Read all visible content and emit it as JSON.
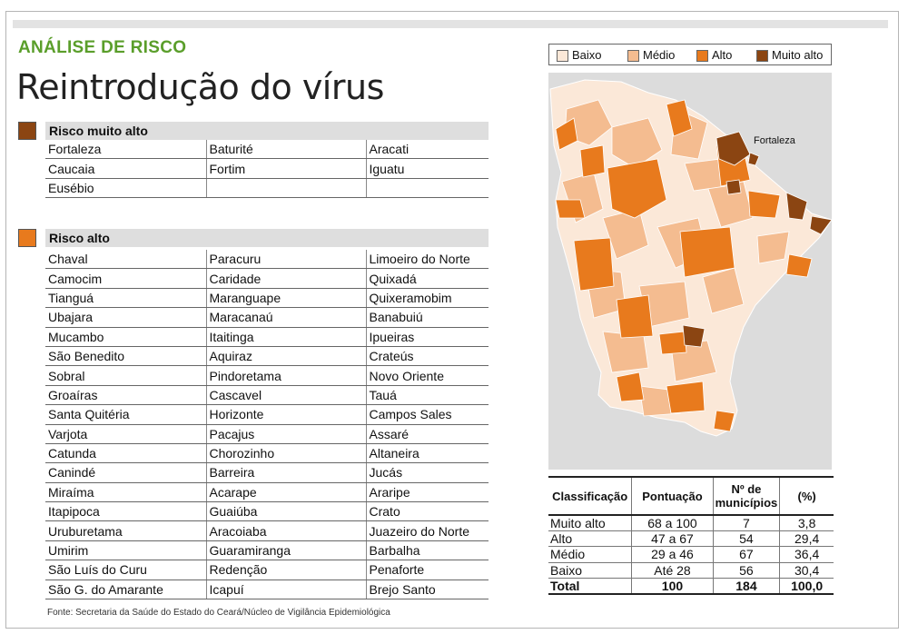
{
  "kicker": "ANÁLISE DE RISCO",
  "headline": "Reintrodução do vírus",
  "colors": {
    "baixo": "#fbe8d8",
    "medio": "#f4bc90",
    "alto": "#e87a1d",
    "muito_alto": "#8b4512",
    "kicker": "#5a9e2a"
  },
  "muito_alto_section": {
    "title": "Risco muito alto",
    "rows": [
      [
        "Fortaleza",
        "Baturité",
        "Aracati"
      ],
      [
        "Caucaia",
        "Fortim",
        "Iguatu"
      ],
      [
        "Eusébio",
        "",
        ""
      ]
    ]
  },
  "alto_section": {
    "title": "Risco alto",
    "rows": [
      [
        "Chaval",
        "Paracuru",
        "Limoeiro do Norte"
      ],
      [
        "Camocim",
        "Caridade",
        "Quixadá"
      ],
      [
        "Tianguá",
        "Maranguape",
        "Quixeramobim"
      ],
      [
        "Ubajara",
        "Maracanaú",
        "Banabuiú"
      ],
      [
        "Mucambo",
        "Itaitinga",
        "Ipueiras"
      ],
      [
        "São Benedito",
        "Aquiraz",
        "Crateús"
      ],
      [
        "Sobral",
        "Pindoretama",
        "Novo Oriente"
      ],
      [
        "Groaíras",
        "Cascavel",
        "Tauá"
      ],
      [
        "Santa Quitéria",
        "Horizonte",
        "Campos Sales"
      ],
      [
        "Varjota",
        "Pacajus",
        "Assaré"
      ],
      [
        "Catunda",
        "Chorozinho",
        "Altaneira"
      ],
      [
        "Canindé",
        "Barreira",
        "Jucás"
      ],
      [
        "Miraíma",
        "Acarape",
        "Araripe"
      ],
      [
        "Itapipoca",
        "Guaiúba",
        "Crato"
      ],
      [
        "Uruburetama",
        "Aracoiaba",
        "Juazeiro do Norte"
      ],
      [
        "Umirim",
        "Guaramiranga",
        "Barbalha"
      ],
      [
        "São Luís do Curu",
        "Redenção",
        "Penaforte"
      ],
      [
        "São G. do Amarante",
        "Icapuí",
        "Brejo Santo"
      ]
    ]
  },
  "legend": {
    "baixo": "Baixo",
    "medio": "Médio",
    "alto": "Alto",
    "muito_alto": "Muito alto"
  },
  "map": {
    "city_label": "Fortaleza"
  },
  "stats": {
    "headers": [
      "Classificação",
      "Pontuação",
      "Nº de municípios",
      "(%)"
    ],
    "rows": [
      [
        "Muito alto",
        "68 a 100",
        "7",
        "3,8"
      ],
      [
        "Alto",
        "47 a 67",
        "54",
        "29,4"
      ],
      [
        "Médio",
        "29 a 46",
        "67",
        "36,4"
      ],
      [
        "Baixo",
        "Até 28",
        "56",
        "30,4"
      ]
    ],
    "total": [
      "Total",
      "100",
      "184",
      "100,0"
    ]
  },
  "source": "Fonte: Secretaria da Saúde do Estado do Ceará/Núcleo de Vigilância Epidemiológica"
}
